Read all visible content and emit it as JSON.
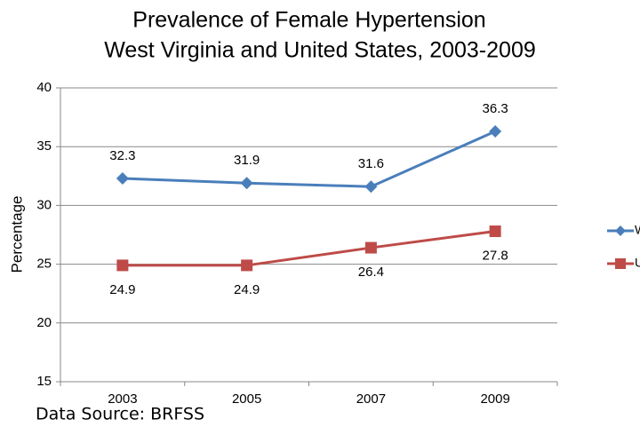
{
  "chart_data": {
    "type": "line",
    "title": "Prevalence of Female Hypertension",
    "subtitle": "West Virginia and United States, 2003-2009",
    "y_label": "Percentage",
    "source": "Data Source: BRFSS",
    "categories": [
      "2003",
      "2005",
      "2007",
      "2009"
    ],
    "series": [
      {
        "name": "WV",
        "color": "#4a7ebb",
        "marker": "diamond",
        "values": [
          32.3,
          31.9,
          31.6,
          36.3
        ]
      },
      {
        "name": "US",
        "color": "#be4b48",
        "marker": "square",
        "values": [
          24.9,
          24.9,
          26.4,
          27.8
        ]
      }
    ],
    "ylim": [
      15,
      40
    ],
    "yticks": [
      15,
      20,
      25,
      30,
      35,
      40
    ],
    "grid": true,
    "legend": "right"
  }
}
